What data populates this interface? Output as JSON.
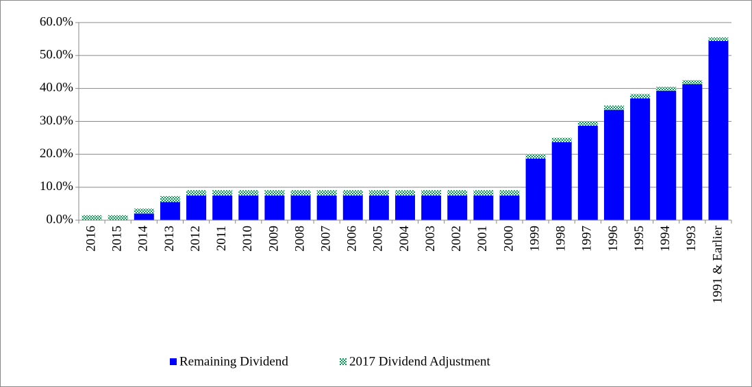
{
  "chart_data": {
    "type": "stacked_bar",
    "categories": [
      "2016",
      "2015",
      "2014",
      "2013",
      "2012",
      "2011",
      "2010",
      "2009",
      "2008",
      "2007",
      "2006",
      "2005",
      "2004",
      "2003",
      "2002",
      "2001",
      "2000",
      "1999",
      "1998",
      "1997",
      "1996",
      "1995",
      "1994",
      "1993",
      "1991 & Earlier"
    ],
    "series": [
      {
        "name": "Remaining Dividend",
        "color": "#0000ff",
        "values": [
          0,
          0,
          2.0,
          5.5,
          7.5,
          7.5,
          7.5,
          7.5,
          7.5,
          7.5,
          7.5,
          7.5,
          7.5,
          7.5,
          7.5,
          7.5,
          7.5,
          18.7,
          23.7,
          28.7,
          33.5,
          37.0,
          39.3,
          41.3,
          54.4
        ]
      },
      {
        "name": "2017 Dividend Adjustment",
        "color": "#00a050",
        "values": [
          1.5,
          1.5,
          1.5,
          1.8,
          1.6,
          1.6,
          1.6,
          1.6,
          1.6,
          1.6,
          1.6,
          1.6,
          1.6,
          1.6,
          1.6,
          1.6,
          1.6,
          1.4,
          1.3,
          1.3,
          1.3,
          1.3,
          1.2,
          1.2,
          1.1
        ]
      }
    ],
    "ylim": [
      0,
      60
    ],
    "yticks": [
      {
        "value": 0,
        "label": "0.0%"
      },
      {
        "value": 10,
        "label": "10.0%"
      },
      {
        "value": 20,
        "label": "20.0%"
      },
      {
        "value": 30,
        "label": "30.0%"
      },
      {
        "value": 40,
        "label": "40.0%"
      },
      {
        "value": 50,
        "label": "50.0%"
      },
      {
        "value": 60,
        "label": "60.0%"
      }
    ],
    "grid": true,
    "legend": "bottom"
  }
}
